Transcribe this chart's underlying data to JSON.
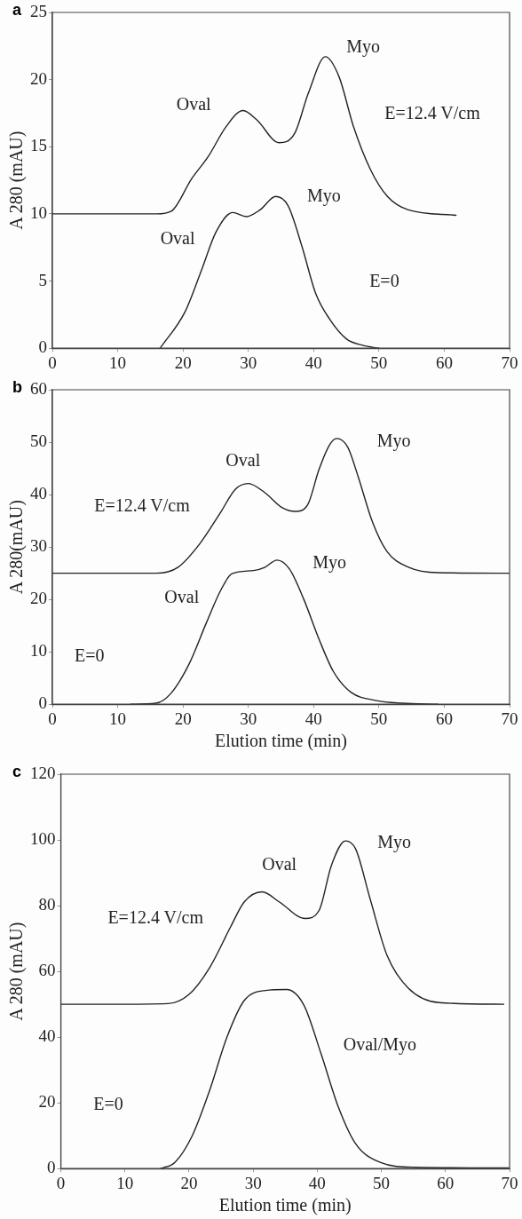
{
  "chart_data": [
    {
      "type": "line",
      "title": "a",
      "ylabel": "A 280 (mAU)",
      "xlim": [
        0,
        70
      ],
      "ylim": [
        0,
        25
      ],
      "xticks": [
        0,
        10,
        20,
        30,
        40,
        50,
        60,
        70
      ],
      "yticks": [
        0,
        5,
        10,
        15,
        20,
        25
      ],
      "grid": false,
      "legend": false,
      "marker": "none",
      "line_style": "solid",
      "series": [
        {
          "color": "#222222",
          "x": [
            0,
            8,
            16,
            18.2,
            21.3,
            23.9,
            26.6,
            29.2,
            31.3,
            34.7,
            37.1,
            39.2,
            41.8,
            43.9,
            46.1,
            48.7,
            51.3,
            54.5,
            61.8
          ],
          "values": [
            10,
            10,
            10,
            10.2,
            12.6,
            14.3,
            16.5,
            17.7,
            17,
            15.3,
            16,
            19,
            21.7,
            20.2,
            16.5,
            13.3,
            11.3,
            10.3,
            9.9
          ]
        },
        {
          "color": "#222222",
          "x": [
            16.5,
            20.3,
            22.9,
            25,
            27.6,
            29.7,
            31.8,
            34.2,
            36.1,
            38.2,
            40.3,
            42.4,
            45,
            47.6,
            50
          ],
          "values": [
            0,
            2.7,
            5.9,
            8.6,
            10.1,
            9.8,
            10.3,
            11.3,
            10.6,
            7.6,
            4.1,
            2.2,
            0.7,
            0.2,
            0
          ]
        }
      ],
      "annotations": [
        "Oval",
        "Myo",
        "E=12.4 V/cm",
        "Oval",
        "Myo",
        "E=0"
      ]
    },
    {
      "type": "line",
      "title": "b",
      "xlabel": "Elution time (min)",
      "ylabel": "A 280(mAU)",
      "xlim": [
        0,
        70
      ],
      "ylim": [
        0,
        60
      ],
      "xticks": [
        0,
        10,
        20,
        30,
        40,
        50,
        60,
        70
      ],
      "yticks": [
        0,
        10,
        20,
        30,
        40,
        50,
        60
      ],
      "grid": false,
      "legend": false,
      "marker": "none",
      "line_style": "solid",
      "series": [
        {
          "color": "#222222",
          "x": [
            0,
            8,
            15.9,
            19.2,
            22.5,
            25.8,
            28,
            30,
            32.5,
            35.2,
            37.2,
            39.1,
            40.8,
            42.4,
            43.5,
            45.2,
            46.8,
            49,
            51.2,
            54.6,
            59,
            70
          ],
          "values": [
            25,
            25,
            25,
            26.1,
            30.5,
            36.7,
            41,
            42.1,
            40.4,
            37.5,
            36.8,
            38.1,
            44.7,
            49.4,
            50.7,
            49.1,
            43.5,
            34.8,
            29.2,
            26.1,
            25.1,
            25
          ]
        },
        {
          "color": "#222222",
          "x": [
            12,
            15.9,
            18.1,
            20.9,
            23.6,
            25.8,
            27.5,
            30.8,
            32.5,
            34.4,
            36.3,
            38.5,
            40.8,
            43,
            45.7,
            49.6,
            53.5,
            59
          ],
          "values": [
            0,
            0.2,
            2,
            7.6,
            15.6,
            21.8,
            24.9,
            25.5,
            26.1,
            27.5,
            25.8,
            20,
            12.5,
            6.3,
            2.3,
            0.7,
            0.2,
            0
          ]
        }
      ],
      "annotations": [
        "Oval",
        "Myo",
        "E=12.4 V/cm",
        "Oval",
        "Myo",
        "E=0"
      ]
    },
    {
      "type": "line",
      "title": "c",
      "xlabel": "Elution time (min)",
      "ylabel": "A 280 (mAU)",
      "xlim": [
        0,
        70
      ],
      "ylim": [
        0,
        120
      ],
      "xticks": [
        0,
        10,
        20,
        30,
        40,
        50,
        60,
        70
      ],
      "yticks": [
        0,
        20,
        40,
        60,
        80,
        100,
        120
      ],
      "grid": false,
      "legend": false,
      "marker": "none",
      "line_style": "solid",
      "series": [
        {
          "color": "#222222",
          "x": [
            0,
            8,
            16.7,
            20,
            23.2,
            26.5,
            28.6,
            31.4,
            34.1,
            38.1,
            40.3,
            42.2,
            44.4,
            46,
            48.2,
            50.9,
            54.2,
            59,
            69.1
          ],
          "values": [
            50,
            50,
            50.2,
            53,
            61.1,
            73.6,
            81.1,
            84.2,
            81.1,
            76.1,
            78.6,
            92.2,
            99.7,
            97.2,
            82.4,
            64.8,
            54.9,
            50.5,
            50
          ]
        },
        {
          "color": "#222222",
          "x": [
            15.6,
            17.8,
            20.5,
            23.2,
            25.9,
            28.6,
            31.9,
            35.2,
            37.9,
            40.6,
            43.3,
            46,
            49.8,
            55.2,
            69.9
          ],
          "values": [
            0,
            1.9,
            10,
            23.7,
            39.9,
            51.1,
            54.2,
            54.5,
            49.8,
            34.9,
            18.7,
            7.5,
            1.9,
            0.4,
            0.2
          ]
        }
      ],
      "annotations": [
        "Oval",
        "Myo",
        "E=12.4 V/cm",
        "Oval/Myo",
        "E=0"
      ]
    }
  ]
}
